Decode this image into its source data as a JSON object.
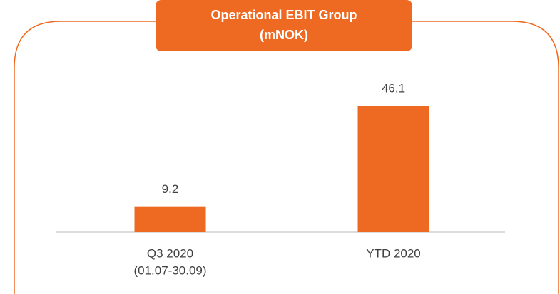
{
  "chart_data": {
    "type": "bar",
    "title": [
      "Operational EBIT Group",
      "(mNOK)"
    ],
    "categories": [
      [
        "Q3 2020",
        "(01.07-30.09)"
      ],
      [
        "YTD 2020"
      ]
    ],
    "values": [
      9.2,
      46.1
    ],
    "color": "#ee6a22",
    "ylim": [
      0,
      50
    ]
  }
}
